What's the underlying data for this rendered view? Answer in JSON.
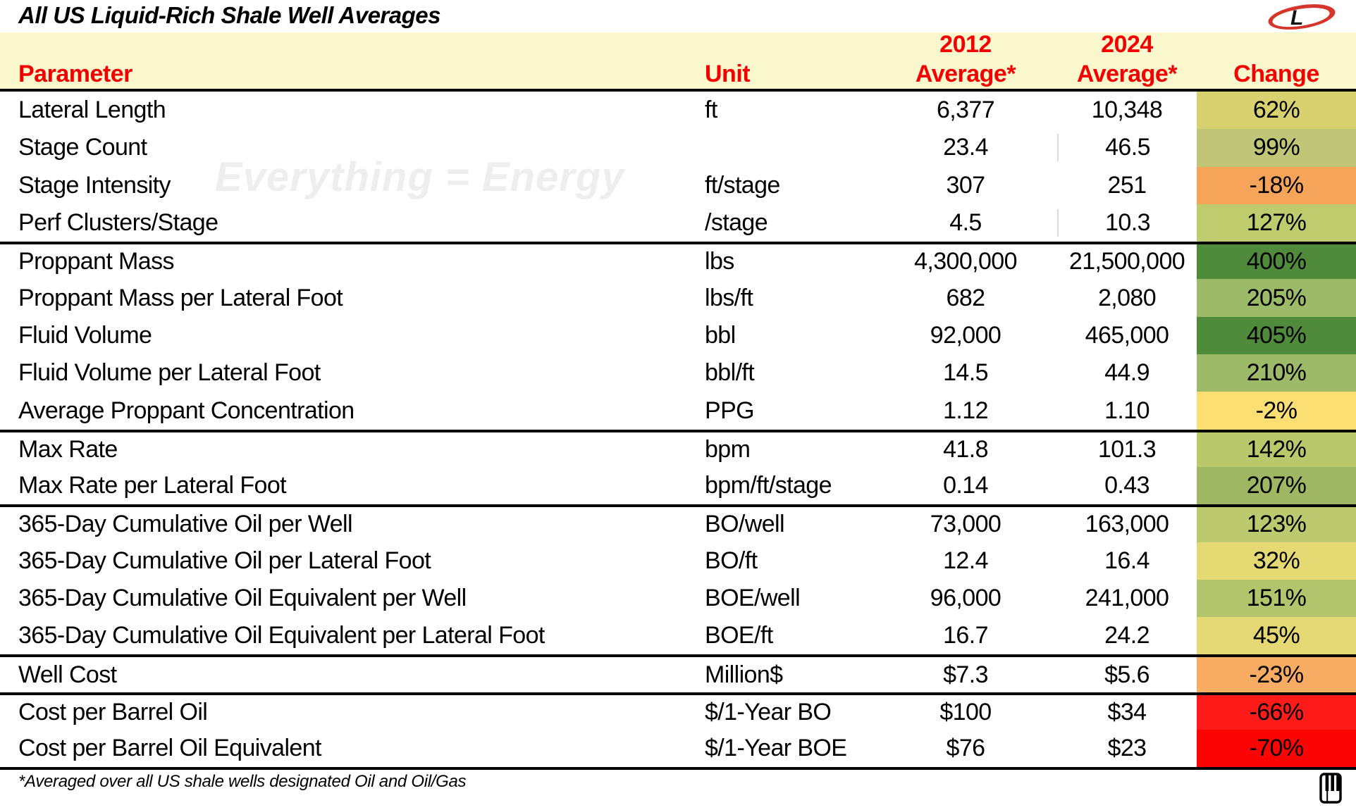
{
  "slide": {
    "title": "All US Liquid-Rich Shale Well Averages",
    "watermark": "Everything = Energy",
    "footnote": "*Averaged over all US shale wells designated Oil and Oil/Gas"
  },
  "logo": {
    "letter": "L",
    "red": "#D6352B"
  },
  "colors": {
    "header_bg": "#FBF8CE",
    "header_text": "#F40000",
    "separator": "#000000",
    "divider_gray": "#D9D9D9"
  },
  "table_header": {
    "parameter": "Parameter",
    "unit": "Unit",
    "y2012": "2012",
    "y2024": "2024",
    "avg2012_label": "Average*",
    "avg2024_label": "Average*",
    "change": "Change"
  },
  "chart_data": {
    "type": "table",
    "title": "All US Liquid-Rich Shale Well Averages",
    "columns": [
      "Parameter",
      "Unit",
      "2012 Average*",
      "2024 Average*",
      "Change"
    ],
    "legend_note": "Change column is conditionally color-coded from red (large decrease) through yellow to dark green (large increase)",
    "rows": [
      {
        "parameter": "Lateral Length",
        "unit": "ft",
        "avg2012": "6,377",
        "avg2024": "10,348",
        "change": "62%",
        "change_color": "#D7D16F",
        "group_start": false,
        "divider": false
      },
      {
        "parameter": "Stage Count",
        "unit": "",
        "avg2012": "23.4",
        "avg2024": "46.5",
        "change": "99%",
        "change_color": "#C1C577",
        "group_start": false,
        "divider": true
      },
      {
        "parameter": "Stage Intensity",
        "unit": "ft/stage",
        "avg2012": "307",
        "avg2024": "251",
        "change": "-18%",
        "change_color": "#F7A45B",
        "group_start": false,
        "divider": false
      },
      {
        "parameter": "Perf Clusters/Stage",
        "unit": "/stage",
        "avg2012": "4.5",
        "avg2024": "10.3",
        "change": "127%",
        "change_color": "#BFCC6E",
        "group_start": false,
        "divider": true
      },
      {
        "parameter": "Proppant Mass",
        "unit": "lbs",
        "avg2012": "4,300,000",
        "avg2024": "21,500,000",
        "change": "400%",
        "change_color": "#4F8B3B",
        "group_start": true,
        "divider": false
      },
      {
        "parameter": "Proppant Mass per Lateral Foot",
        "unit": "lbs/ft",
        "avg2012": "682",
        "avg2024": "2,080",
        "change": "205%",
        "change_color": "#9DBA69",
        "group_start": false,
        "divider": false
      },
      {
        "parameter": "Fluid Volume",
        "unit": "bbl",
        "avg2012": "92,000",
        "avg2024": "465,000",
        "change": "405%",
        "change_color": "#4F8B3B",
        "group_start": false,
        "divider": false
      },
      {
        "parameter": "Fluid Volume per Lateral Foot",
        "unit": "bbl/ft",
        "avg2012": "14.5",
        "avg2024": "44.9",
        "change": "210%",
        "change_color": "#9DBA69",
        "group_start": false,
        "divider": false
      },
      {
        "parameter": "Average Proppant Concentration",
        "unit": "PPG",
        "avg2012": "1.12",
        "avg2024": "1.10",
        "change": "-2%",
        "change_color": "#FBDF73",
        "group_start": false,
        "divider": false
      },
      {
        "parameter": "Max Rate",
        "unit": "bpm",
        "avg2012": "41.8",
        "avg2024": "101.3",
        "change": "142%",
        "change_color": "#BAC86C",
        "group_start": true,
        "divider": false
      },
      {
        "parameter": "Max Rate per Lateral Foot",
        "unit": "bpm/ft/stage",
        "avg2012": "0.14",
        "avg2024": "0.43",
        "change": "207%",
        "change_color": "#9FB763",
        "group_start": false,
        "divider": false
      },
      {
        "parameter": "365-Day Cumulative Oil per Well",
        "unit": "BO/well",
        "avg2012": "73,000",
        "avg2024": "163,000",
        "change": "123%",
        "change_color": "#BDC96E",
        "group_start": true,
        "divider": false
      },
      {
        "parameter": "365-Day Cumulative Oil per Lateral Foot",
        "unit": "BO/ft",
        "avg2012": "12.4",
        "avg2024": "16.4",
        "change": "32%",
        "change_color": "#E5D973",
        "group_start": false,
        "divider": false
      },
      {
        "parameter": "365-Day Cumulative Oil Equivalent per Well",
        "unit": "BOE/well",
        "avg2012": "96,000",
        "avg2024": "241,000",
        "change": "151%",
        "change_color": "#B2C46C",
        "group_start": false,
        "divider": false
      },
      {
        "parameter": "365-Day Cumulative Oil Equivalent per Lateral Foot",
        "unit": "BOE/ft",
        "avg2012": "16.7",
        "avg2024": "24.2",
        "change": "45%",
        "change_color": "#E3D873",
        "group_start": false,
        "divider": false
      },
      {
        "parameter": "Well Cost",
        "unit": "Million$",
        "avg2012": "$7.3",
        "avg2024": "$5.6",
        "change": "-23%",
        "change_color": "#F8AC63",
        "group_start": true,
        "divider": false
      },
      {
        "parameter": "Cost per Barrel Oil",
        "unit": "$/1-Year BO",
        "avg2012": "$100",
        "avg2024": "$34",
        "change": "-66%",
        "change_color": "#FE1B1A",
        "group_start": true,
        "divider": false
      },
      {
        "parameter": "Cost per Barrel Oil Equivalent",
        "unit": "$/1-Year BOE",
        "avg2012": "$76",
        "avg2024": "$23",
        "change": "-70%",
        "change_color": "#FC0404",
        "group_start": false,
        "divider": false
      }
    ]
  }
}
